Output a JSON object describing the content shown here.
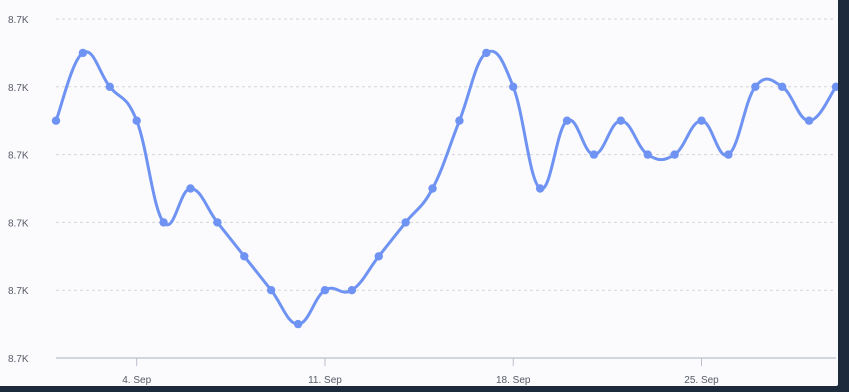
{
  "chart_data": {
    "type": "line",
    "title": "",
    "xlabel": "",
    "ylabel": "",
    "grid": true,
    "legend": "none",
    "x_range": [
      "2023-09-01",
      "2023-09-30"
    ],
    "y_tick_labels": [
      "8.7K",
      "8.7K",
      "8.7K",
      "8.7K",
      "8.7K",
      "8.7K"
    ],
    "x_tick_labels": [
      "4. Sep",
      "11. Sep",
      "18. Sep",
      "25. Sep"
    ],
    "x_ticks": [
      "2023-09-04",
      "2023-09-11",
      "2023-09-18",
      "2023-09-25"
    ],
    "series": [
      {
        "color": "#6f93f2",
        "x": [
          "2023-09-01",
          "2023-09-02",
          "2023-09-03",
          "2023-09-04",
          "2023-09-05",
          "2023-09-06",
          "2023-09-07",
          "2023-09-08",
          "2023-09-09",
          "2023-09-10",
          "2023-09-11",
          "2023-09-12",
          "2023-09-13",
          "2023-09-14",
          "2023-09-15",
          "2023-09-16",
          "2023-09-17",
          "2023-09-18",
          "2023-09-19",
          "2023-09-20",
          "2023-09-21",
          "2023-09-22",
          "2023-09-23",
          "2023-09-24",
          "2023-09-25",
          "2023-09-26",
          "2023-09-27",
          "2023-09-28",
          "2023-09-29",
          "2023-09-30"
        ],
        "values": [
          8.65,
          8.67,
          8.66,
          8.65,
          8.62,
          8.63,
          8.62,
          8.61,
          8.6,
          8.59,
          8.6,
          8.6,
          8.61,
          8.62,
          8.63,
          8.65,
          8.67,
          8.66,
          8.63,
          8.65,
          8.64,
          8.65,
          8.64,
          8.64,
          8.65,
          8.64,
          8.66,
          8.66,
          8.65,
          8.66
        ]
      }
    ],
    "ylim": [
      8.58,
      8.68
    ]
  }
}
